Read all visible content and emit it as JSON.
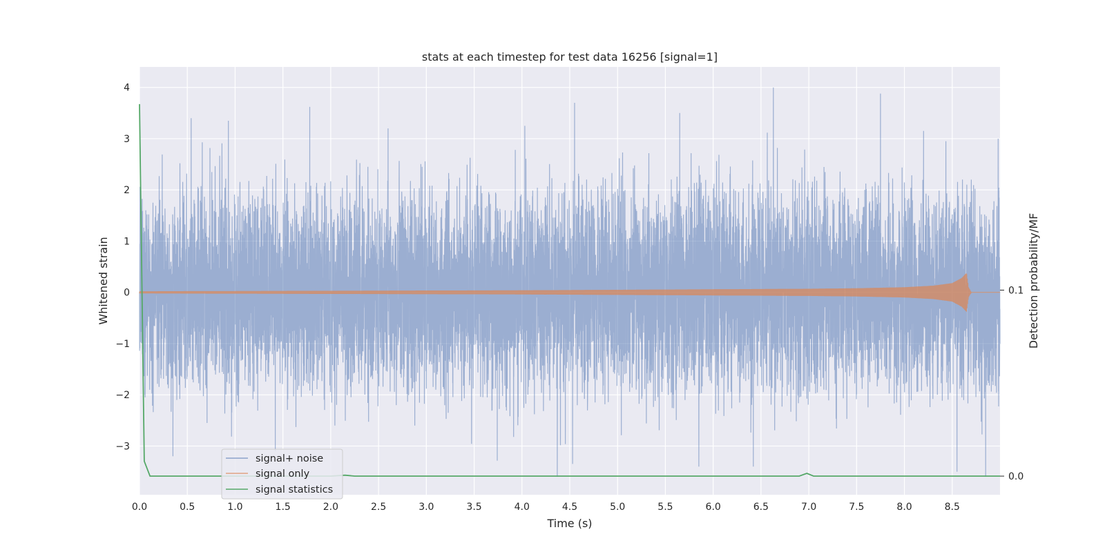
{
  "chart_data": {
    "type": "line",
    "title": "stats at each timestep for test data 16256 [signal=1]",
    "xlabel": "Time (s)",
    "ylabel": "Whitened strain",
    "y2label": "Detection probability/MF",
    "xlim": [
      0.0,
      9.0
    ],
    "ylim": [
      -3.95,
      4.4
    ],
    "y2lim": [
      -0.01,
      0.22
    ],
    "xticks": [
      "0.0",
      "0.5",
      "1.0",
      "1.5",
      "2.0",
      "2.5",
      "3.0",
      "3.5",
      "4.0",
      "4.5",
      "5.0",
      "5.5",
      "6.0",
      "6.5",
      "7.0",
      "7.5",
      "8.0",
      "8.5"
    ],
    "yticks": [
      "4",
      "3",
      "2",
      "1",
      "0",
      "−1",
      "−2",
      "−3"
    ],
    "y2ticks": [
      "0.1",
      "0.0"
    ],
    "grid": true,
    "legend_position": "lower-left",
    "series": [
      {
        "name": "signal+ noise",
        "color": "#4c72b0",
        "kind": "noise",
        "sample_rate": 2048,
        "typical_amplitude": 1.0,
        "notable_peaks": [
          {
            "x": 0.54,
            "y": 3.4
          },
          {
            "x": 0.93,
            "y": 3.35
          },
          {
            "x": 1.78,
            "y": 3.62
          },
          {
            "x": 2.6,
            "y": 3.2
          },
          {
            "x": 4.03,
            "y": 3.25
          },
          {
            "x": 4.55,
            "y": 3.7
          },
          {
            "x": 5.65,
            "y": 3.5
          },
          {
            "x": 6.63,
            "y": 4.0
          },
          {
            "x": 7.75,
            "y": 3.88
          },
          {
            "x": 8.2,
            "y": 3.15
          },
          {
            "x": 8.98,
            "y": 3.0
          }
        ],
        "notable_troughs": [
          {
            "x": 0.35,
            "y": -3.2
          },
          {
            "x": 1.42,
            "y": -3.1
          },
          {
            "x": 4.37,
            "y": -3.6
          },
          {
            "x": 4.53,
            "y": -3.35
          },
          {
            "x": 5.85,
            "y": -3.4
          },
          {
            "x": 6.42,
            "y": -3.4
          },
          {
            "x": 8.55,
            "y": -3.5
          },
          {
            "x": 8.85,
            "y": -3.6
          }
        ]
      },
      {
        "name": "signal only",
        "color": "#dd8452",
        "kind": "chirp",
        "x": [
          0.0,
          4.0,
          5.0,
          6.0,
          7.0,
          7.5,
          8.0,
          8.3,
          8.5,
          8.6,
          8.65,
          8.67,
          8.7,
          9.0
        ],
        "envelope": [
          0.02,
          0.04,
          0.05,
          0.06,
          0.07,
          0.08,
          0.1,
          0.13,
          0.18,
          0.28,
          0.38,
          0.1,
          0.0,
          0.0
        ]
      },
      {
        "name": "signal statistics",
        "color": "#55a868",
        "kind": "line",
        "axis": "right",
        "x": [
          0.0,
          0.05,
          0.11,
          2.0,
          2.15,
          2.25,
          6.9,
          6.98,
          7.05,
          7.3,
          9.0
        ],
        "values": [
          0.2,
          0.008,
          0.0,
          0.0,
          0.0005,
          0.0,
          0.0,
          0.0015,
          0.0,
          0.0,
          0.0
        ]
      }
    ]
  }
}
